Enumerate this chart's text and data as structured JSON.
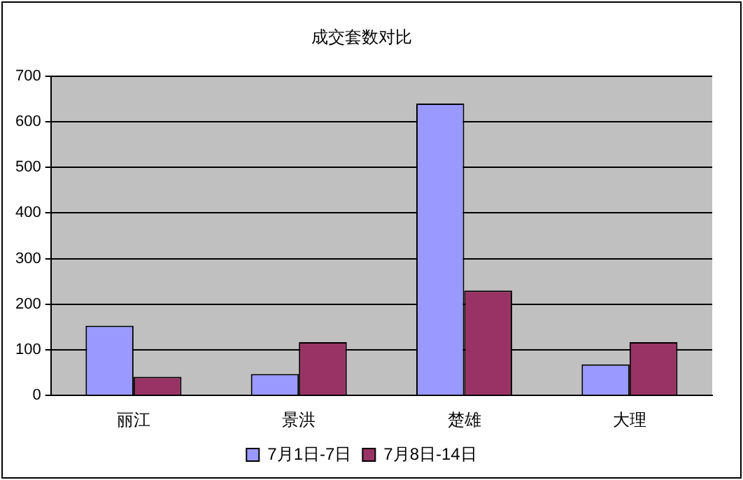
{
  "chart_data": {
    "type": "bar",
    "title": "成交套数对比",
    "categories": [
      "丽江",
      "景洪",
      "楚雄",
      "大理"
    ],
    "series": [
      {
        "name": "7月1日-7日",
        "color": "#9999ff",
        "values": [
          153,
          47,
          640,
          68
        ]
      },
      {
        "name": "7月8日-14日",
        "color": "#993366",
        "values": [
          41,
          117,
          230,
          117
        ]
      }
    ],
    "ylim": [
      0,
      700
    ],
    "yticks": [
      0,
      100,
      200,
      300,
      400,
      500,
      600,
      700
    ],
    "grid": "y",
    "legend": "bottom"
  }
}
